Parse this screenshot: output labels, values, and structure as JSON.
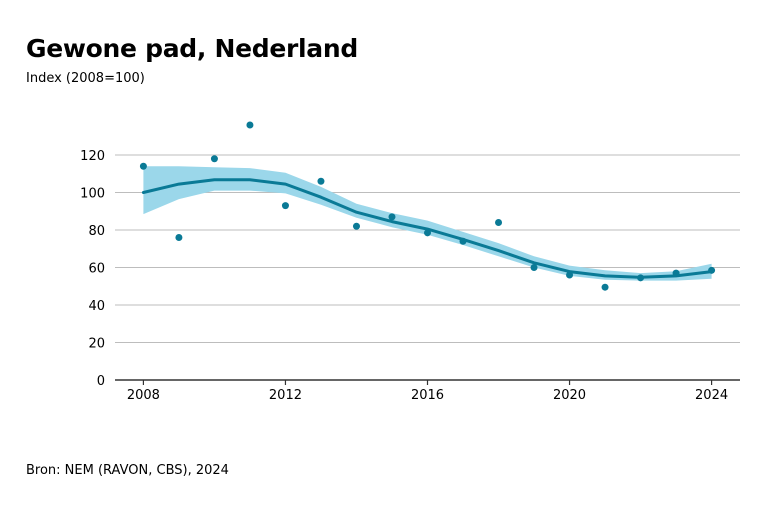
{
  "title": "Gewone pad, Nederland",
  "subtitle": "Index (2008=100)",
  "source": "Bron: NEM (RAVON, CBS), 2024",
  "colors": {
    "trend": "#0a7a96",
    "band": "#9bd7ea",
    "points": "#0a7a96",
    "grid": "#bdbdbd",
    "axis": "#333333"
  },
  "chart_data": {
    "type": "line",
    "x_ticks": [
      2008,
      2012,
      2016,
      2020,
      2024
    ],
    "y_ticks": [
      0,
      20,
      40,
      60,
      80,
      100,
      120
    ],
    "xlim": [
      2007.2,
      2024.8
    ],
    "ylim": [
      0,
      120
    ],
    "grid": true,
    "series": [
      {
        "kind": "trend",
        "x": [
          2008,
          2009,
          2010,
          2011,
          2012,
          2013,
          2014,
          2015,
          2016,
          2017,
          2018,
          2019,
          2020,
          2021,
          2022,
          2023,
          2024
        ],
        "y": [
          100,
          104.5,
          106.8,
          106.8,
          104.5,
          97.5,
          89.5,
          84.5,
          80.5,
          75,
          69,
          62.5,
          57.8,
          55.5,
          54.8,
          55.5,
          57.8
        ]
      },
      {
        "kind": "confidence-band",
        "x": [
          2008,
          2009,
          2010,
          2011,
          2012,
          2013,
          2014,
          2015,
          2016,
          2017,
          2018,
          2019,
          2020,
          2021,
          2022,
          2023,
          2024
        ],
        "lower": [
          88.5,
          96.5,
          101,
          101,
          99.5,
          93.5,
          86.5,
          81.5,
          77.5,
          72,
          66,
          60,
          55.5,
          53.5,
          53,
          53,
          54
        ],
        "upper": [
          114,
          114,
          113.5,
          113,
          110.5,
          103,
          94,
          89,
          85,
          79,
          73,
          66,
          61,
          58.5,
          57,
          58,
          62
        ]
      },
      {
        "kind": "observed",
        "x": [
          2008,
          2009,
          2010,
          2011,
          2012,
          2013,
          2014,
          2015,
          2016,
          2017,
          2018,
          2019,
          2020,
          2021,
          2022,
          2023,
          2024
        ],
        "y": [
          114,
          76,
          118,
          136,
          93,
          106,
          82,
          87,
          78.5,
          74,
          84,
          60,
          56,
          49.5,
          54.5,
          57,
          58.5
        ]
      }
    ]
  }
}
